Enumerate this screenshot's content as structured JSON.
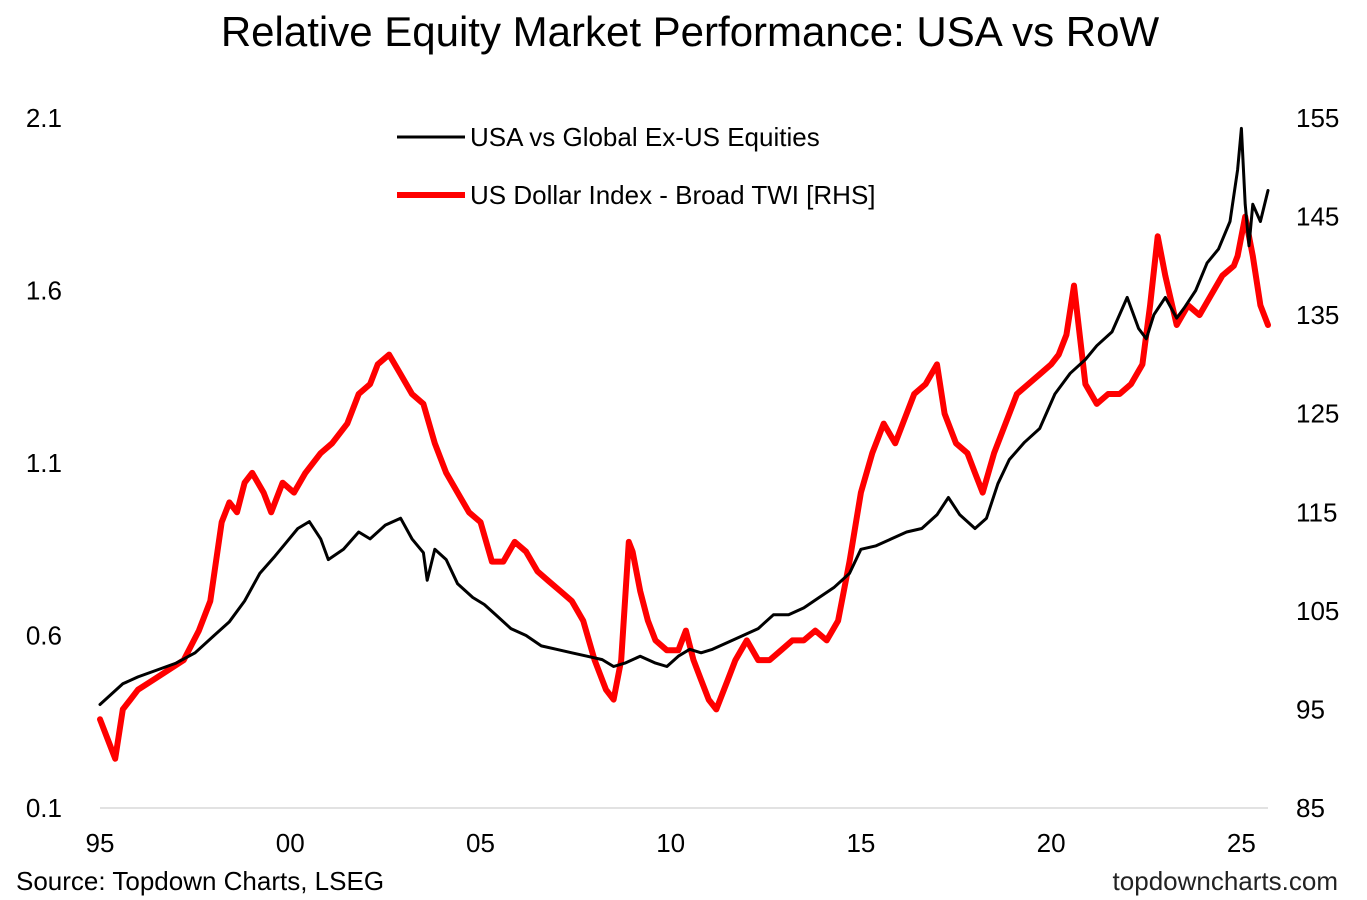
{
  "chart_data": {
    "type": "line",
    "title": "Relative Equity Market Performance: USA vs RoW",
    "xlabel": "",
    "ylabel_left": "",
    "ylabel_right": "",
    "x_ticks": [
      "95",
      "00",
      "05",
      "10",
      "15",
      "20",
      "25"
    ],
    "x_tick_years": [
      1995,
      2000,
      2005,
      2010,
      2015,
      2020,
      2025
    ],
    "xlim": [
      1995.0,
      2025.7
    ],
    "ylim_left": [
      0.1,
      2.1
    ],
    "y_ticks_left": [
      "2.1",
      "1.6",
      "1.1",
      "0.6",
      "0.1"
    ],
    "y_tick_values_left": [
      2.1,
      1.6,
      1.1,
      0.6,
      0.1
    ],
    "ylim_right": [
      85,
      155
    ],
    "y_ticks_right": [
      "155",
      "145",
      "135",
      "125",
      "115",
      "105",
      "95",
      "85"
    ],
    "y_tick_values_right": [
      155,
      145,
      135,
      125,
      115,
      105,
      95,
      85
    ],
    "grid": false,
    "legend_position": "top-center",
    "series": [
      {
        "name": "USA vs Global Ex-US Equities",
        "axis": "left",
        "color": "#000000",
        "x": [
          1995.0,
          1995.3,
          1995.6,
          1996.0,
          1996.5,
          1997.0,
          1997.5,
          1998.0,
          1998.4,
          1998.8,
          1999.2,
          1999.6,
          1999.9,
          2000.2,
          2000.5,
          2000.8,
          2001.0,
          2001.4,
          2001.8,
          2002.1,
          2002.5,
          2002.9,
          2003.2,
          2003.5,
          2003.6,
          2003.8,
          2004.1,
          2004.4,
          2004.8,
          2005.1,
          2005.4,
          2005.8,
          2006.2,
          2006.6,
          2007.0,
          2007.4,
          2007.8,
          2008.2,
          2008.5,
          2008.8,
          2009.2,
          2009.6,
          2009.9,
          2010.2,
          2010.5,
          2010.8,
          2011.1,
          2011.5,
          2011.9,
          2012.3,
          2012.7,
          2013.1,
          2013.5,
          2013.9,
          2014.3,
          2014.7,
          2015.0,
          2015.4,
          2015.8,
          2016.2,
          2016.6,
          2017.0,
          2017.3,
          2017.6,
          2017.8,
          2018.0,
          2018.3,
          2018.6,
          2018.9,
          2019.3,
          2019.7,
          2020.1,
          2020.5,
          2020.9,
          2021.2,
          2021.6,
          2022.0,
          2022.3,
          2022.5,
          2022.7,
          2023.0,
          2023.3,
          2023.5,
          2023.8,
          2024.1,
          2024.4,
          2024.7,
          2024.9,
          2025.0,
          2025.1,
          2025.2,
          2025.3,
          2025.5,
          2025.7
        ],
        "values": [
          0.4,
          0.43,
          0.46,
          0.48,
          0.5,
          0.52,
          0.55,
          0.6,
          0.64,
          0.7,
          0.78,
          0.83,
          0.87,
          0.91,
          0.93,
          0.88,
          0.82,
          0.85,
          0.9,
          0.88,
          0.92,
          0.94,
          0.88,
          0.84,
          0.76,
          0.85,
          0.82,
          0.75,
          0.71,
          0.69,
          0.66,
          0.62,
          0.6,
          0.57,
          0.56,
          0.55,
          0.54,
          0.53,
          0.51,
          0.52,
          0.54,
          0.52,
          0.51,
          0.54,
          0.56,
          0.55,
          0.56,
          0.58,
          0.6,
          0.62,
          0.66,
          0.66,
          0.68,
          0.71,
          0.74,
          0.78,
          0.85,
          0.86,
          0.88,
          0.9,
          0.91,
          0.95,
          1.0,
          0.95,
          0.93,
          0.91,
          0.94,
          1.04,
          1.11,
          1.16,
          1.2,
          1.3,
          1.36,
          1.4,
          1.44,
          1.48,
          1.58,
          1.49,
          1.46,
          1.53,
          1.58,
          1.52,
          1.55,
          1.6,
          1.68,
          1.72,
          1.8,
          1.95,
          2.07,
          1.85,
          1.73,
          1.85,
          1.8,
          1.89
        ]
      },
      {
        "name": "US Dollar Index - Broad TWI [RHS]",
        "axis": "right",
        "color": "#ff0000",
        "x": [
          1995.0,
          1995.2,
          1995.4,
          1995.6,
          1995.8,
          1996.0,
          1996.4,
          1996.8,
          1997.2,
          1997.6,
          1997.9,
          1998.2,
          1998.4,
          1998.6,
          1998.8,
          1999.0,
          1999.3,
          1999.5,
          1999.8,
          2000.1,
          2000.4,
          2000.8,
          2001.1,
          2001.5,
          2001.8,
          2002.1,
          2002.3,
          2002.6,
          2002.9,
          2003.2,
          2003.5,
          2003.8,
          2004.1,
          2004.4,
          2004.7,
          2005.0,
          2005.3,
          2005.6,
          2005.9,
          2006.2,
          2006.5,
          2006.8,
          2007.1,
          2007.4,
          2007.7,
          2008.0,
          2008.3,
          2008.5,
          2008.7,
          2008.9,
          2009.0,
          2009.2,
          2009.4,
          2009.6,
          2009.9,
          2010.2,
          2010.4,
          2010.6,
          2010.8,
          2011.0,
          2011.2,
          2011.5,
          2011.7,
          2012.0,
          2012.3,
          2012.6,
          2012.9,
          2013.2,
          2013.5,
          2013.8,
          2014.1,
          2014.4,
          2014.7,
          2015.0,
          2015.3,
          2015.6,
          2015.9,
          2016.1,
          2016.4,
          2016.7,
          2017.0,
          2017.2,
          2017.5,
          2017.8,
          2018.0,
          2018.2,
          2018.5,
          2018.8,
          2019.1,
          2019.4,
          2019.7,
          2020.0,
          2020.2,
          2020.4,
          2020.6,
          2020.9,
          2021.2,
          2021.5,
          2021.8,
          2022.1,
          2022.4,
          2022.6,
          2022.8,
          2023.0,
          2023.3,
          2023.6,
          2023.9,
          2024.2,
          2024.5,
          2024.8,
          2024.9,
          2025.1,
          2025.3,
          2025.5,
          2025.7
        ],
        "values": [
          94,
          92,
          90,
          95,
          96,
          97,
          98,
          99,
          100,
          103,
          106,
          114,
          116,
          115,
          118,
          119,
          117,
          115,
          118,
          117,
          119,
          121,
          122,
          124,
          127,
          128,
          130,
          131,
          129,
          127,
          126,
          122,
          119,
          117,
          115,
          114,
          110,
          110,
          112,
          111,
          109,
          108,
          107,
          106,
          104,
          100,
          97,
          96,
          100,
          112,
          111,
          107,
          104,
          102,
          101,
          101,
          103,
          100,
          98,
          96,
          95,
          98,
          100,
          102,
          100,
          100,
          101,
          102,
          102,
          103,
          102,
          104,
          110,
          117,
          121,
          124,
          122,
          124,
          127,
          128,
          130,
          125,
          122,
          121,
          119,
          117,
          121,
          124,
          127,
          128,
          129,
          130,
          131,
          133,
          138,
          128,
          126,
          127,
          127,
          128,
          130,
          136,
          143,
          139,
          134,
          136,
          135,
          137,
          139,
          140,
          141,
          145,
          141,
          136,
          134
        ]
      }
    ]
  },
  "footer": {
    "source": "Source: Topdown Charts, LSEG",
    "watermark": "topdowncharts.com"
  }
}
